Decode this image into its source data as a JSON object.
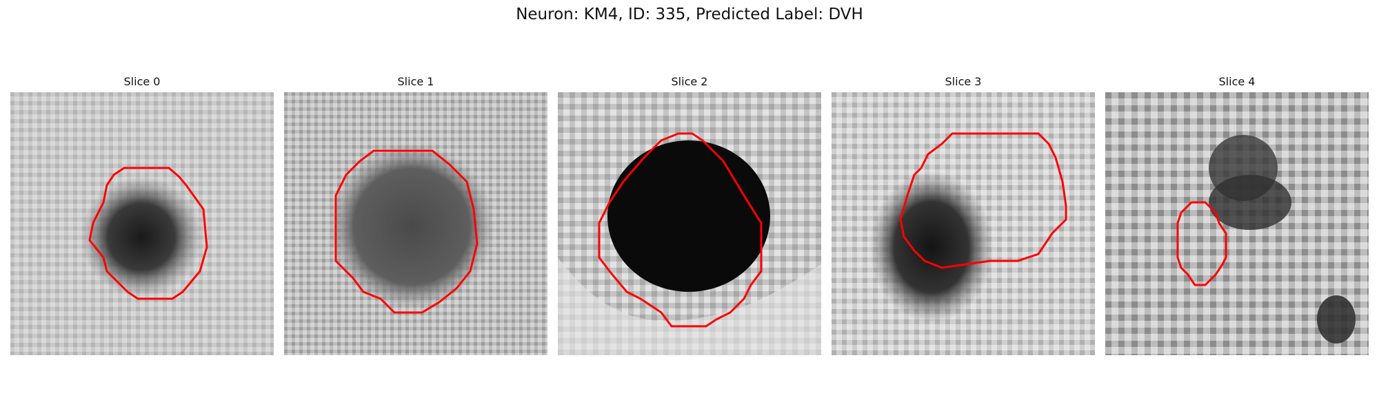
{
  "figure": {
    "title": "Neuron: KM4, ID: 335, Predicted Label: DVH"
  },
  "contour_color": "#ff0000",
  "panels": [
    {
      "label": "Slice 0"
    },
    {
      "label": "Slice 1"
    },
    {
      "label": "Slice 2"
    },
    {
      "label": "Slice 3"
    },
    {
      "label": "Slice 4"
    }
  ]
}
